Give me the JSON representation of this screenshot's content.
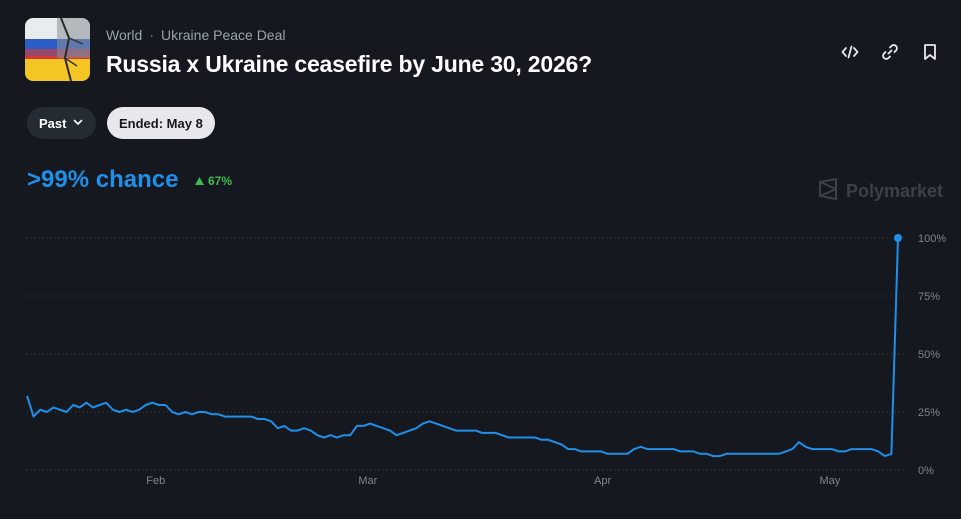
{
  "breadcrumb": {
    "category": "World",
    "separator": "·",
    "subcategory": "Ukraine Peace Deal"
  },
  "title": "Russia x Ukraine ceasefire by June 30, 2026?",
  "filters": {
    "range_label": "Past",
    "ended_label": "Ended: May 8"
  },
  "headline": {
    "chance": ">99% chance",
    "change": "67%"
  },
  "brand": "Polymarket",
  "colors": {
    "line": "#1f8fe8",
    "up": "#3fb950",
    "background": "#15191f"
  },
  "chart_data": {
    "type": "line",
    "title": "",
    "xlabel": "",
    "ylabel": "",
    "ylim": [
      0,
      100
    ],
    "yticks": [
      "100%",
      "75%",
      "50%",
      "25%",
      "0%"
    ],
    "ytick_values": [
      100,
      75,
      50,
      25,
      0
    ],
    "xticks": [
      {
        "label": "Feb",
        "day": 31
      },
      {
        "label": "Mar",
        "day": 59
      },
      {
        "label": "Apr",
        "day": 90
      },
      {
        "label": "May",
        "day": 120
      }
    ],
    "x_start": "Jan 14",
    "x_end": "May 8",
    "grid": true,
    "series": [
      {
        "values": [
          32,
          23,
          26,
          25,
          27,
          26,
          25,
          28,
          27,
          29,
          27,
          28,
          29,
          26,
          25,
          26,
          25,
          26,
          28,
          29,
          28,
          28,
          25,
          24,
          25,
          24,
          25,
          25,
          24,
          24,
          23,
          23,
          23,
          23,
          23,
          22,
          22,
          21,
          18,
          19,
          17,
          17,
          18,
          17,
          15,
          14,
          15,
          14,
          15,
          15,
          19,
          19,
          20,
          19,
          18,
          17,
          15,
          16,
          17,
          18,
          20,
          21,
          20,
          19,
          18,
          17,
          17,
          17,
          17,
          16,
          16,
          16,
          15,
          14,
          14,
          14,
          14,
          14,
          13,
          13,
          12,
          11,
          9,
          9,
          8,
          8,
          8,
          8,
          7,
          7,
          7,
          7,
          9,
          10,
          9,
          9,
          9,
          9,
          9,
          8,
          8,
          8,
          7,
          7,
          6,
          6,
          7,
          7,
          7,
          7,
          7,
          7,
          7,
          7,
          7,
          8,
          9,
          12,
          10,
          9,
          9,
          9,
          9,
          8,
          8,
          9,
          9,
          9,
          9,
          8,
          6,
          7,
          100
        ]
      }
    ]
  }
}
